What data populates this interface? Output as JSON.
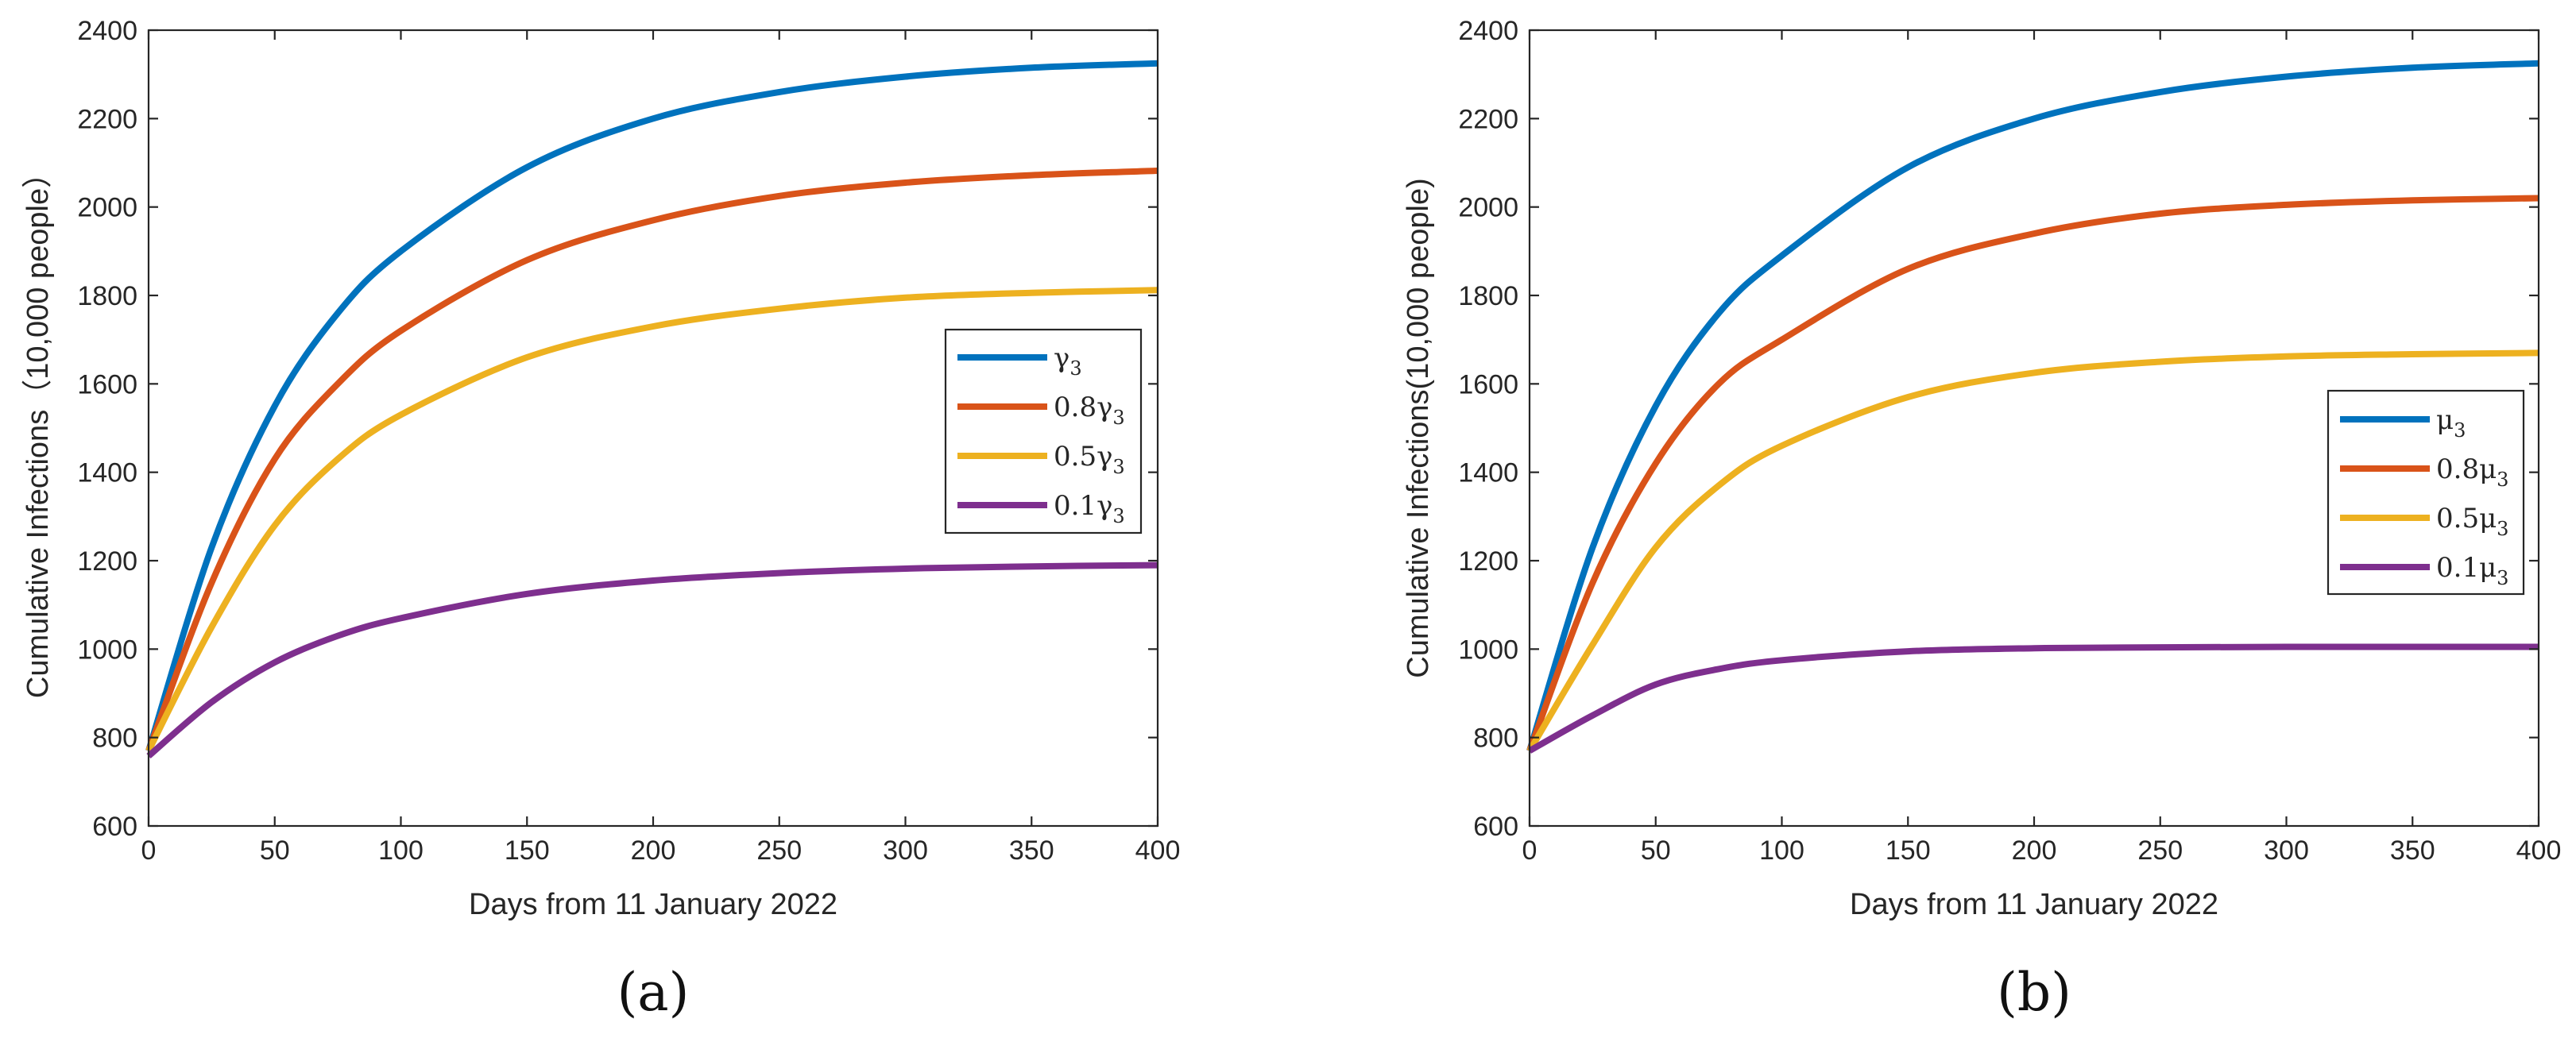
{
  "colors": {
    "blue": "#0072BD",
    "orange": "#D95319",
    "yellow": "#EDB120",
    "purple": "#7E2F8E"
  },
  "chart_data": [
    {
      "type": "line",
      "panel_label": "(a)",
      "xlabel": "Days from 11 January 2022",
      "ylabel": "Cumulative Infections（10,000 people）",
      "xlim": [
        0,
        400
      ],
      "ylim": [
        600,
        2400
      ],
      "xticks": [
        "0",
        "50",
        "100",
        "150",
        "200",
        "250",
        "300",
        "350",
        "400"
      ],
      "yticks": [
        "600",
        "800",
        "1000",
        "1200",
        "1400",
        "1600",
        "1800",
        "2000",
        "2200",
        "2400"
      ],
      "legend_position": "right-middle",
      "x": [
        0,
        25,
        50,
        75,
        100,
        150,
        200,
        250,
        300,
        350,
        400
      ],
      "series": [
        {
          "name": "γ3",
          "base": "γ",
          "sub": "3",
          "color": "blue",
          "values": [
            770,
            1230,
            1550,
            1760,
            1900,
            2090,
            2200,
            2260,
            2295,
            2315,
            2325
          ]
        },
        {
          "name": "0.8γ3",
          "base": "0.8γ",
          "sub": "3",
          "color": "orange",
          "values": [
            770,
            1150,
            1430,
            1600,
            1720,
            1880,
            1970,
            2025,
            2055,
            2072,
            2082
          ]
        },
        {
          "name": "0.5γ3",
          "base": "0.5γ",
          "sub": "3",
          "color": "yellow",
          "values": [
            770,
            1050,
            1280,
            1430,
            1530,
            1660,
            1730,
            1770,
            1795,
            1806,
            1812
          ]
        },
        {
          "name": "0.1γ3",
          "base": "0.1γ",
          "sub": "3",
          "color": "purple",
          "values": [
            758,
            880,
            970,
            1030,
            1070,
            1125,
            1155,
            1172,
            1182,
            1187,
            1190
          ]
        }
      ]
    },
    {
      "type": "line",
      "panel_label": "(b)",
      "xlabel": "Days from 11 January 2022",
      "ylabel": "Cumulative Infections(10,000 people)",
      "xlim": [
        0,
        400
      ],
      "ylim": [
        600,
        2400
      ],
      "xticks": [
        "0",
        "50",
        "100",
        "150",
        "200",
        "250",
        "300",
        "350",
        "400"
      ],
      "yticks": [
        "600",
        "800",
        "1000",
        "1200",
        "1400",
        "1600",
        "1800",
        "2000",
        "2200",
        "2400"
      ],
      "legend_position": "right-middle",
      "x": [
        0,
        25,
        50,
        75,
        100,
        150,
        200,
        250,
        300,
        350,
        400
      ],
      "series": [
        {
          "name": "μ3",
          "base": "μ",
          "sub": "3",
          "color": "blue",
          "values": [
            770,
            1230,
            1550,
            1760,
            1890,
            2090,
            2200,
            2260,
            2295,
            2315,
            2325
          ]
        },
        {
          "name": "0.8μ3",
          "base": "0.8μ",
          "sub": "3",
          "color": "orange",
          "values": [
            770,
            1150,
            1420,
            1600,
            1700,
            1860,
            1940,
            1985,
            2005,
            2015,
            2020
          ]
        },
        {
          "name": "0.5μ3",
          "base": "0.5μ",
          "sub": "3",
          "color": "yellow",
          "values": [
            770,
            1010,
            1230,
            1370,
            1460,
            1570,
            1625,
            1650,
            1662,
            1667,
            1670
          ]
        },
        {
          "name": "0.1μ3",
          "base": "0.1μ",
          "sub": "3",
          "color": "purple",
          "values": [
            770,
            850,
            920,
            955,
            975,
            995,
            1002,
            1004,
            1005,
            1005,
            1005
          ]
        }
      ]
    }
  ]
}
